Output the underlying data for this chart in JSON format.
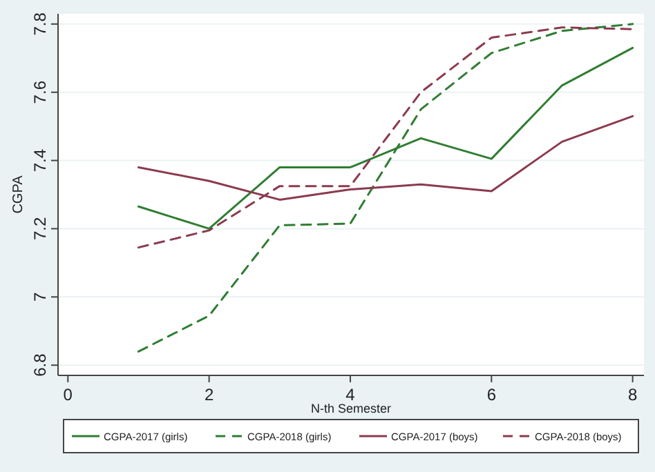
{
  "chart_data": {
    "type": "line",
    "xlabel": "N-th Semester",
    "ylabel": "CGPA",
    "x": [
      1,
      2,
      3,
      4,
      5,
      6,
      7,
      8
    ],
    "series": [
      {
        "name": "CGPA-2017 (girls)",
        "color": "#2f7d32",
        "line_style": "solid",
        "values": [
          7.265,
          7.2,
          7.38,
          7.38,
          7.465,
          7.405,
          7.62,
          7.73
        ]
      },
      {
        "name": "CGPA-2018 (girls)",
        "color": "#2f7d32",
        "line_style": "dashed",
        "values": [
          6.84,
          6.945,
          7.21,
          7.215,
          7.55,
          7.715,
          7.78,
          7.8
        ]
      },
      {
        "name": "CGPA-2017 (boys)",
        "color": "#8b3a4e",
        "line_style": "solid",
        "values": [
          7.38,
          7.34,
          7.285,
          7.315,
          7.33,
          7.31,
          7.455,
          7.53
        ]
      },
      {
        "name": "CGPA-2018 (boys)",
        "color": "#8b3a4e",
        "line_style": "dashed",
        "values": [
          7.145,
          7.195,
          7.325,
          7.325,
          7.6,
          7.76,
          7.79,
          7.785
        ]
      }
    ],
    "xlim": [
      -0.14,
      8.16
    ],
    "xticks": [
      0,
      2,
      4,
      6,
      8
    ],
    "ylim": [
      6.77,
      7.83
    ],
    "yticks": [
      6.8,
      7,
      7.2,
      7.4,
      7.6,
      7.8
    ],
    "grid": "y",
    "legend": "bottom"
  }
}
